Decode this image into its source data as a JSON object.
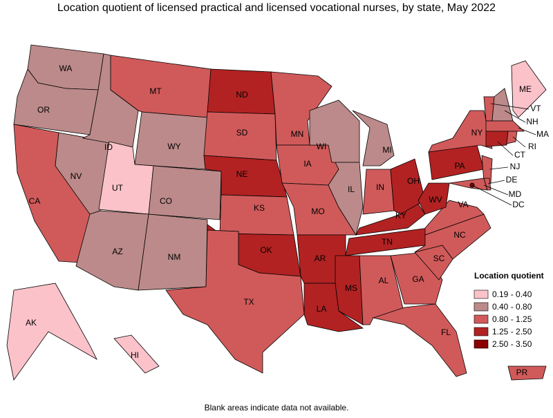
{
  "title": "Location quotient of licensed practical and licensed vocational nurses, by state, May 2022",
  "note": "Blank areas indicate data not available.",
  "legend": {
    "title": "Location quotient",
    "items": [
      {
        "label": "0.19 - 0.40",
        "color": "#fbc2c9"
      },
      {
        "label": "0.40 - 0.80",
        "color": "#bc8a8a"
      },
      {
        "label": "0.80 - 1.25",
        "color": "#d05a5a"
      },
      {
        "label": "1.25 - 2.50",
        "color": "#b22222"
      },
      {
        "label": "2.50 - 3.50",
        "color": "#8b0000"
      }
    ]
  },
  "states": [
    {
      "label": "WA",
      "color": "#bc8a8a"
    },
    {
      "label": "OR",
      "color": "#bc8a8a"
    },
    {
      "label": "CA",
      "color": "#d05a5a"
    },
    {
      "label": "NV",
      "color": "#bc8a8a"
    },
    {
      "label": "ID",
      "color": "#bc8a8a"
    },
    {
      "label": "MT",
      "color": "#d05a5a"
    },
    {
      "label": "WY",
      "color": "#bc8a8a"
    },
    {
      "label": "UT",
      "color": "#fbc2c9"
    },
    {
      "label": "CO",
      "color": "#bc8a8a"
    },
    {
      "label": "AZ",
      "color": "#bc8a8a"
    },
    {
      "label": "NM",
      "color": "#bc8a8a"
    },
    {
      "label": "ND",
      "color": "#b22222"
    },
    {
      "label": "SD",
      "color": "#d05a5a"
    },
    {
      "label": "NE",
      "color": "#b22222"
    },
    {
      "label": "KS",
      "color": "#d05a5a"
    },
    {
      "label": "OK",
      "color": "#b22222"
    },
    {
      "label": "TX",
      "color": "#d05a5a"
    },
    {
      "label": "MN",
      "color": "#d05a5a"
    },
    {
      "label": "IA",
      "color": "#d05a5a"
    },
    {
      "label": "MO",
      "color": "#d05a5a"
    },
    {
      "label": "AR",
      "color": "#b22222"
    },
    {
      "label": "LA",
      "color": "#b22222"
    },
    {
      "label": "MS",
      "color": "#b22222"
    },
    {
      "label": "AL",
      "color": "#d05a5a"
    },
    {
      "label": "WI",
      "color": "#bc8a8a"
    },
    {
      "label": "IL",
      "color": "#bc8a8a"
    },
    {
      "label": "MI",
      "color": "#bc8a8a"
    },
    {
      "label": "IN",
      "color": "#d05a5a"
    },
    {
      "label": "OH",
      "color": "#b22222"
    },
    {
      "label": "KY",
      "color": "#b22222"
    },
    {
      "label": "TN",
      "color": "#b22222"
    },
    {
      "label": "GA",
      "color": "#d05a5a"
    },
    {
      "label": "FL",
      "color": "#d05a5a"
    },
    {
      "label": "SC",
      "color": "#d05a5a"
    },
    {
      "label": "NC",
      "color": "#d05a5a"
    },
    {
      "label": "VA",
      "color": "#d05a5a"
    },
    {
      "label": "WV",
      "color": "#b22222"
    },
    {
      "label": "PA",
      "color": "#b22222"
    },
    {
      "label": "NY",
      "color": "#d05a5a"
    },
    {
      "label": "NJ",
      "color": "#d05a5a"
    },
    {
      "label": "MD",
      "color": "#d05a5a"
    },
    {
      "label": "DE",
      "color": "#d05a5a"
    },
    {
      "label": "VT",
      "color": "#d05a5a"
    },
    {
      "label": "NH",
      "color": "#bc8a8a"
    },
    {
      "label": "ME",
      "color": "#fbc2c9"
    },
    {
      "label": "MA",
      "color": "#d05a5a"
    },
    {
      "label": "CT",
      "color": "#b22222"
    },
    {
      "label": "RI",
      "color": "#d05a5a"
    },
    {
      "label": "DC",
      "color": "#8b0000"
    },
    {
      "label": "AK",
      "color": "#fbc2c9"
    },
    {
      "label": "HI",
      "color": "#fbc2c9"
    },
    {
      "label": "PR",
      "color": "#d05a5a"
    }
  ]
}
